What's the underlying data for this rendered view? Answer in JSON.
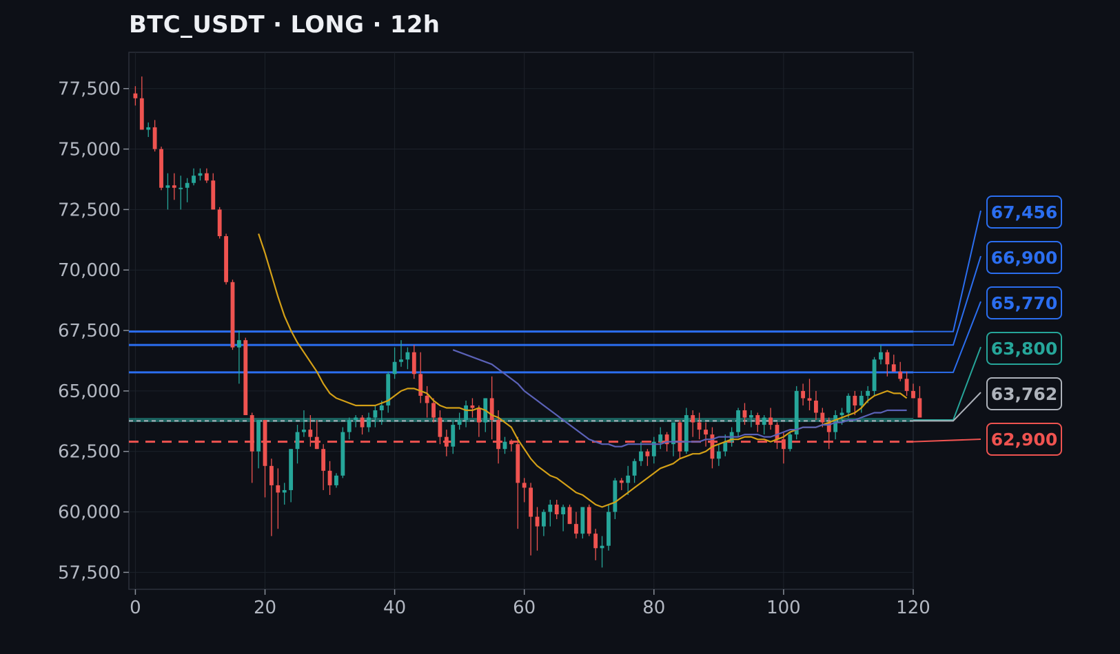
{
  "title": "BTC_USDT · LONG · 12h",
  "colors": {
    "background": "#0d1017",
    "plot_border": "#2c313b",
    "grid": "#1d222b",
    "up": "#26a69a",
    "down": "#ef5350",
    "ma_fast": "#d4a017",
    "ma_slow": "#5b62b8",
    "entry": "#2e8b7a",
    "tp": "#2b6ef0",
    "stop": "#ef5350",
    "current": "#aeb3bb"
  },
  "chart_data": {
    "type": "candlestick",
    "title": "BTC_USDT · LONG · 12h",
    "xlabel": "",
    "ylabel": "",
    "xlim": [
      -1,
      120
    ],
    "ylim": [
      56800,
      79000
    ],
    "x_ticks": [
      0,
      20,
      40,
      60,
      80,
      100,
      120
    ],
    "y_ticks": [
      57500,
      60000,
      62500,
      65000,
      67500,
      70000,
      72500,
      75000,
      77500
    ],
    "grid": true,
    "candles_ohlc": [
      [
        77300,
        77600,
        76800,
        77100
      ],
      [
        77100,
        78000,
        75800,
        75800
      ],
      [
        75800,
        76100,
        75500,
        75900
      ],
      [
        75900,
        76200,
        74900,
        75000
      ],
      [
        75000,
        75100,
        73300,
        73400
      ],
      [
        73400,
        74000,
        72500,
        73500
      ],
      [
        73500,
        74000,
        72900,
        73400
      ],
      [
        73400,
        73900,
        72500,
        73400
      ],
      [
        73400,
        73800,
        72800,
        73600
      ],
      [
        73600,
        74200,
        73500,
        73900
      ],
      [
        73900,
        74200,
        73700,
        74000
      ],
      [
        74000,
        74200,
        73600,
        73700
      ],
      [
        73700,
        74000,
        72500,
        72500
      ],
      [
        72500,
        72600,
        71300,
        71400
      ],
      [
        71400,
        71500,
        69400,
        69500
      ],
      [
        69500,
        69600,
        66700,
        66800
      ],
      [
        66800,
        67500,
        65300,
        67100
      ],
      [
        67100,
        67200,
        64000,
        64000
      ],
      [
        64000,
        64100,
        61200,
        62500
      ],
      [
        62500,
        63600,
        61800,
        63800
      ],
      [
        63800,
        63800,
        60600,
        61900
      ],
      [
        61900,
        62200,
        59000,
        61100
      ],
      [
        61100,
        61800,
        59300,
        60800
      ],
      [
        60800,
        61200,
        60300,
        60900
      ],
      [
        60900,
        62600,
        60400,
        62600
      ],
      [
        62600,
        63600,
        62000,
        63300
      ],
      [
        63300,
        64200,
        63100,
        63400
      ],
      [
        63400,
        64000,
        62700,
        63100
      ],
      [
        63100,
        63800,
        62600,
        62600
      ],
      [
        62600,
        62800,
        60900,
        61700
      ],
      [
        61700,
        62100,
        60700,
        61100
      ],
      [
        61100,
        61600,
        61000,
        61500
      ],
      [
        61500,
        63500,
        61400,
        63300
      ],
      [
        63300,
        63900,
        63000,
        63800
      ],
      [
        63800,
        64000,
        63500,
        63900
      ],
      [
        63900,
        64000,
        63200,
        63500
      ],
      [
        63500,
        64100,
        63300,
        63900
      ],
      [
        63900,
        64400,
        63500,
        64200
      ],
      [
        64200,
        64600,
        63600,
        64400
      ],
      [
        64400,
        65800,
        64100,
        65700
      ],
      [
        65700,
        66800,
        65500,
        66200
      ],
      [
        66200,
        67100,
        66000,
        66300
      ],
      [
        66300,
        66800,
        65900,
        66600
      ],
      [
        66600,
        66900,
        65500,
        65700
      ],
      [
        65700,
        66600,
        64500,
        64800
      ],
      [
        64800,
        65200,
        63900,
        64500
      ],
      [
        64500,
        64700,
        63700,
        63900
      ],
      [
        63900,
        64200,
        62800,
        63100
      ],
      [
        63100,
        63400,
        62300,
        62700
      ],
      [
        62700,
        63800,
        62400,
        63600
      ],
      [
        63600,
        64100,
        63400,
        63800
      ],
      [
        63800,
        64600,
        63500,
        64400
      ],
      [
        64400,
        64700,
        63900,
        64300
      ],
      [
        64300,
        64400,
        63100,
        63700
      ],
      [
        63700,
        64700,
        63300,
        64700
      ],
      [
        64700,
        65600,
        63000,
        63800
      ],
      [
        63800,
        64200,
        62000,
        62600
      ],
      [
        62600,
        63100,
        62400,
        62900
      ],
      [
        62900,
        63000,
        62500,
        62800
      ],
      [
        62800,
        63100,
        59300,
        61200
      ],
      [
        61200,
        61400,
        60400,
        61000
      ],
      [
        61000,
        61200,
        58200,
        59800
      ],
      [
        59800,
        60200,
        58400,
        59400
      ],
      [
        59400,
        60100,
        59000,
        60000
      ],
      [
        60000,
        60500,
        59400,
        60300
      ],
      [
        60300,
        60500,
        59700,
        59900
      ],
      [
        59900,
        60300,
        59200,
        60200
      ],
      [
        60200,
        60300,
        59500,
        59500
      ],
      [
        59500,
        60000,
        58900,
        59100
      ],
      [
        59100,
        60200,
        58900,
        60200
      ],
      [
        60200,
        60300,
        59000,
        59100
      ],
      [
        59100,
        59300,
        58000,
        58500
      ],
      [
        58500,
        59000,
        57700,
        58600
      ],
      [
        58600,
        60300,
        58400,
        60000
      ],
      [
        60000,
        61400,
        59700,
        61300
      ],
      [
        61300,
        61400,
        60900,
        61200
      ],
      [
        61200,
        61900,
        60700,
        61500
      ],
      [
        61500,
        62200,
        61200,
        62100
      ],
      [
        62100,
        62900,
        61900,
        62500
      ],
      [
        62500,
        62600,
        61900,
        62300
      ],
      [
        62300,
        63100,
        62000,
        62900
      ],
      [
        62900,
        63500,
        62600,
        63200
      ],
      [
        63200,
        63300,
        62500,
        62800
      ],
      [
        62800,
        63700,
        62300,
        63700
      ],
      [
        63700,
        63800,
        62200,
        62500
      ],
      [
        62500,
        64300,
        62400,
        64000
      ],
      [
        64000,
        64200,
        63100,
        63700
      ],
      [
        63700,
        64100,
        63000,
        63400
      ],
      [
        63400,
        63700,
        62700,
        63200
      ],
      [
        63200,
        63500,
        61800,
        62200
      ],
      [
        62200,
        62800,
        61900,
        62500
      ],
      [
        62500,
        63200,
        62300,
        62900
      ],
      [
        62900,
        63500,
        62700,
        63300
      ],
      [
        63300,
        64300,
        63100,
        64200
      ],
      [
        64200,
        64500,
        63600,
        63900
      ],
      [
        63900,
        64200,
        63500,
        64000
      ],
      [
        64000,
        64100,
        63300,
        63600
      ],
      [
        63600,
        64000,
        63200,
        63900
      ],
      [
        63900,
        64300,
        63400,
        63600
      ],
      [
        63600,
        63700,
        62600,
        63000
      ],
      [
        63000,
        63300,
        62000,
        62600
      ],
      [
        62600,
        63300,
        62500,
        63200
      ],
      [
        63200,
        65200,
        63000,
        65000
      ],
      [
        65000,
        65300,
        64400,
        64700
      ],
      [
        64700,
        65500,
        64200,
        64600
      ],
      [
        64600,
        65000,
        63800,
        64100
      ],
      [
        64100,
        64300,
        63500,
        63700
      ],
      [
        63700,
        63900,
        62600,
        63300
      ],
      [
        63300,
        64200,
        63000,
        64000
      ],
      [
        64000,
        64300,
        63600,
        64100
      ],
      [
        64100,
        64900,
        63900,
        64800
      ],
      [
        64800,
        65000,
        64000,
        64400
      ],
      [
        64400,
        65000,
        64100,
        64800
      ],
      [
        64800,
        65200,
        64500,
        65000
      ],
      [
        65000,
        66400,
        64800,
        66300
      ],
      [
        66300,
        66900,
        66100,
        66600
      ],
      [
        66600,
        66700,
        65600,
        66100
      ],
      [
        66100,
        66500,
        65900,
        65800
      ],
      [
        65800,
        66200,
        65400,
        65500
      ],
      [
        65500,
        65800,
        64800,
        65000
      ],
      [
        65000,
        65300,
        64700,
        64700
      ],
      [
        64700,
        65200,
        63900,
        63900
      ]
    ],
    "ma_fast": {
      "x": [
        19,
        20,
        21,
        22,
        23,
        24,
        25,
        26,
        27,
        28,
        29,
        30,
        31,
        32,
        33,
        34,
        35,
        36,
        37,
        38,
        39,
        40,
        41,
        42,
        43,
        44,
        45,
        46,
        47,
        48,
        49,
        50,
        51,
        52,
        53,
        54,
        55,
        56,
        57,
        58,
        59,
        60,
        61,
        62,
        63,
        64,
        65,
        66,
        67,
        68,
        69,
        70,
        71,
        72,
        73,
        74,
        75,
        76,
        77,
        78,
        79,
        80,
        81,
        82,
        83,
        84,
        85,
        86,
        87,
        88,
        89,
        90,
        91,
        92,
        93,
        94,
        95,
        96,
        97,
        98,
        99,
        100,
        101,
        102,
        103,
        104,
        105,
        106,
        107,
        108,
        109,
        110,
        111,
        112,
        113,
        114,
        115,
        116,
        117,
        118,
        119
      ],
      "y": [
        71500,
        70700,
        69800,
        68900,
        68100,
        67500,
        67000,
        66600,
        66200,
        65800,
        65300,
        64900,
        64700,
        64600,
        64500,
        64400,
        64400,
        64400,
        64400,
        64500,
        64600,
        64800,
        65000,
        65100,
        65100,
        65000,
        64900,
        64600,
        64400,
        64300,
        64300,
        64300,
        64200,
        64200,
        64300,
        64200,
        64000,
        63900,
        63700,
        63500,
        63000,
        62600,
        62200,
        61900,
        61700,
        61500,
        61400,
        61200,
        61000,
        60800,
        60700,
        60500,
        60300,
        60200,
        60300,
        60400,
        60600,
        60800,
        61000,
        61200,
        61400,
        61600,
        61800,
        61900,
        62000,
        62200,
        62300,
        62400,
        62400,
        62500,
        62700,
        62800,
        62900,
        63000,
        63000,
        63100,
        63100,
        63000,
        63000,
        62900,
        63000,
        63100,
        63300,
        63400,
        63500,
        63500,
        63500,
        63600,
        63700,
        63800,
        63900,
        64000,
        64100,
        64300,
        64600,
        64800,
        64900,
        65000,
        64900,
        64900,
        64700
      ]
    },
    "ma_slow": {
      "x": [
        49,
        50,
        51,
        52,
        53,
        54,
        55,
        56,
        57,
        58,
        59,
        60,
        61,
        62,
        63,
        64,
        65,
        66,
        67,
        68,
        69,
        70,
        71,
        72,
        73,
        74,
        75,
        76,
        77,
        78,
        79,
        80,
        81,
        82,
        83,
        84,
        85,
        86,
        87,
        88,
        89,
        90,
        91,
        92,
        93,
        94,
        95,
        96,
        97,
        98,
        99,
        100,
        101,
        102,
        103,
        104,
        105,
        106,
        107,
        108,
        109,
        110,
        111,
        112,
        113,
        114,
        115,
        116,
        117,
        118,
        119
      ],
      "y": [
        66700,
        66600,
        66500,
        66400,
        66300,
        66200,
        66100,
        65900,
        65700,
        65500,
        65300,
        65000,
        64800,
        64600,
        64400,
        64200,
        64000,
        63800,
        63600,
        63400,
        63200,
        63000,
        62900,
        62800,
        62800,
        62700,
        62700,
        62800,
        62800,
        62800,
        62800,
        62800,
        62800,
        62900,
        62900,
        62900,
        62900,
        62900,
        62900,
        63000,
        63000,
        63100,
        63100,
        63100,
        63100,
        63200,
        63200,
        63200,
        63100,
        63100,
        63200,
        63300,
        63400,
        63400,
        63500,
        63500,
        63500,
        63600,
        63600,
        63700,
        63700,
        63800,
        63800,
        63900,
        64000,
        64100,
        64100,
        64200,
        64200,
        64200,
        64200
      ]
    },
    "levels": [
      {
        "key": "tp3",
        "price": 67456,
        "label": "67,456",
        "color": "#2b6ef0",
        "style": "solid",
        "width": 3
      },
      {
        "key": "tp2",
        "price": 66900,
        "label": "66,900",
        "color": "#2b6ef0",
        "style": "solid",
        "width": 3
      },
      {
        "key": "tp1",
        "price": 65770,
        "label": "65,770",
        "color": "#2b6ef0",
        "style": "solid",
        "width": 3
      },
      {
        "key": "entry",
        "price": 63800,
        "label": "63,800",
        "color": "#26a69a",
        "style": "band",
        "width": 6
      },
      {
        "key": "current",
        "price": 63762,
        "label": "63,762",
        "color": "#aeb3bb",
        "style": "dashed",
        "width": 2
      },
      {
        "key": "stop",
        "price": 62900,
        "label": "62,900",
        "color": "#ef5350",
        "style": "dashed",
        "width": 3
      }
    ]
  }
}
